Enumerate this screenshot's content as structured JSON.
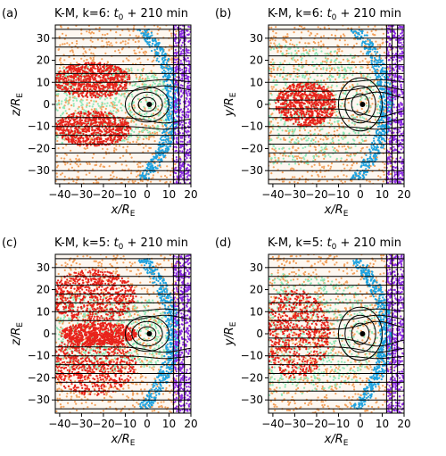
{
  "figure": {
    "panels": [
      {
        "label": "(a)",
        "title_main": "K-M, k=6:",
        "title_t": "t",
        "title_sub": "0",
        "title_rest": " + 210 min",
        "xlabel": "x/R",
        "xlabel_sub": "E",
        "ylabel": "z/R",
        "ylabel_sub": "E",
        "plane": "xz"
      },
      {
        "label": "(b)",
        "title_main": "K-M, k=6:",
        "title_t": "t",
        "title_sub": "0",
        "title_rest": " + 210 min",
        "xlabel": "x/R",
        "xlabel_sub": "E",
        "ylabel": "y/R",
        "ylabel_sub": "E",
        "plane": "xy"
      },
      {
        "label": "(c)",
        "title_main": "K-M, k=5:",
        "title_t": "t",
        "title_sub": "0",
        "title_rest": " + 210 min",
        "xlabel": "x/R",
        "xlabel_sub": "E",
        "ylabel": "z/R",
        "ylabel_sub": "E",
        "plane": "xz"
      },
      {
        "label": "(d)",
        "title_main": "K-M, k=5:",
        "title_t": "t",
        "title_sub": "0",
        "title_rest": " + 210 min",
        "xlabel": "x/R",
        "xlabel_sub": "E",
        "ylabel": "y/R",
        "ylabel_sub": "E",
        "plane": "xy"
      }
    ]
  },
  "chart_data": [
    {
      "type": "scatter",
      "panel": "(a)",
      "x_ticks": [
        -40,
        -30,
        -20,
        -10,
        0,
        10,
        20
      ],
      "y_ticks": [
        -30,
        -20,
        -10,
        0,
        10,
        20,
        30
      ],
      "xlim": [
        -42,
        20
      ],
      "ylim": [
        -36,
        36
      ],
      "cluster_colors": [
        "#e8231b",
        "#8ee8b8",
        "#f2a15c",
        "#1fa3e0",
        "#8a2be2"
      ]
    },
    {
      "type": "scatter",
      "panel": "(b)",
      "x_ticks": [
        -40,
        -30,
        -20,
        -10,
        0,
        10,
        20
      ],
      "y_ticks": [
        -30,
        -20,
        -10,
        0,
        10,
        20,
        30
      ],
      "xlim": [
        -42,
        20
      ],
      "ylim": [
        -36,
        36
      ],
      "cluster_colors": [
        "#e8231b",
        "#8ee8b8",
        "#f2a15c",
        "#1fa3e0",
        "#8a2be2"
      ]
    },
    {
      "type": "scatter",
      "panel": "(c)",
      "x_ticks": [
        -40,
        -30,
        -20,
        -10,
        0,
        10,
        20
      ],
      "y_ticks": [
        -30,
        -20,
        -10,
        0,
        10,
        20,
        30
      ],
      "xlim": [
        -42,
        20
      ],
      "ylim": [
        -36,
        36
      ],
      "cluster_colors": [
        "#e8231b",
        "#8ee8b8",
        "#f2a15c",
        "#1fa3e0",
        "#8a2be2"
      ]
    },
    {
      "type": "scatter",
      "panel": "(d)",
      "x_ticks": [
        -40,
        -30,
        -20,
        -10,
        0,
        10,
        20
      ],
      "y_ticks": [
        -30,
        -20,
        -10,
        0,
        10,
        20,
        30
      ],
      "xlim": [
        -42,
        20
      ],
      "ylim": [
        -36,
        36
      ],
      "cluster_colors": [
        "#e8231b",
        "#8ee8b8",
        "#f2a15c",
        "#1fa3e0",
        "#8a2be2"
      ]
    }
  ]
}
